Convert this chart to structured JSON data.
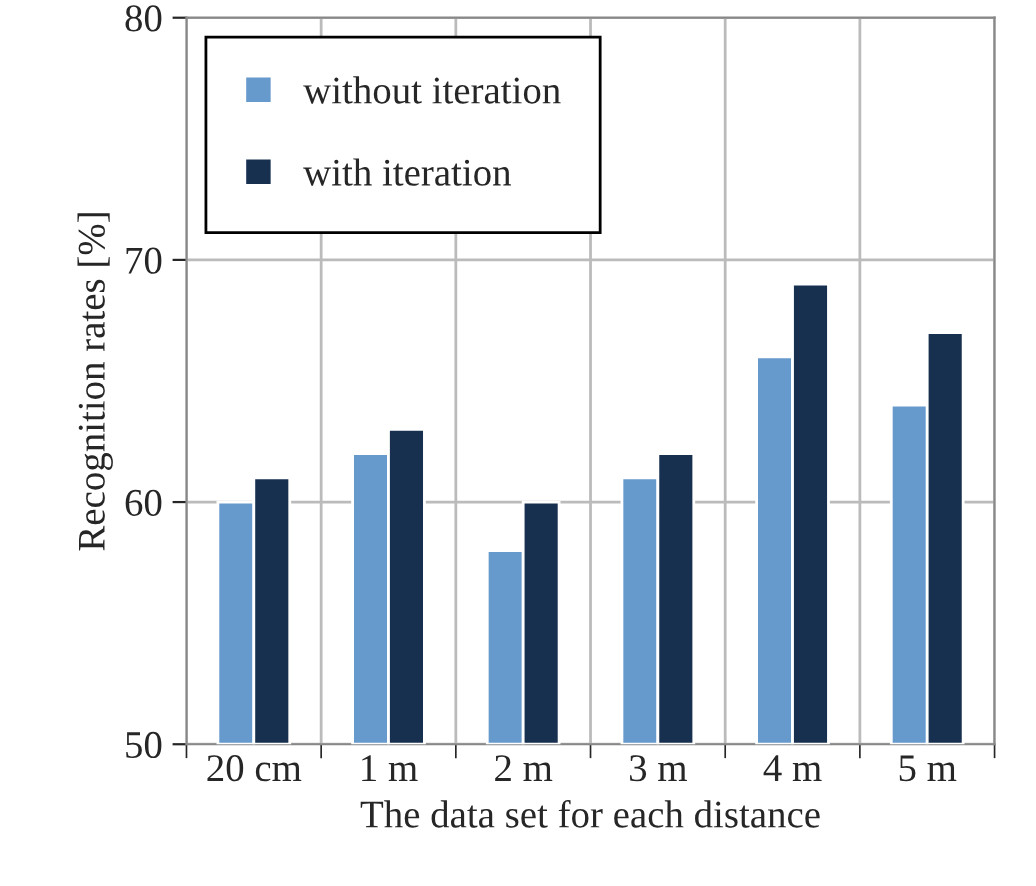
{
  "chart_data": {
    "type": "bar",
    "xlabel": "The data set for each distance",
    "ylabel": "Recognition rates [%]",
    "categories": [
      "20 cm",
      "1 m",
      "2 m",
      "3 m",
      "4 m",
      "5 m"
    ],
    "series": [
      {
        "name": "without iteration",
        "color": "#6699cc",
        "values": [
          60,
          62,
          58,
          61,
          66,
          64
        ]
      },
      {
        "name": "with iteration",
        "color": "#17304f",
        "values": [
          61,
          63,
          60,
          62,
          69,
          67
        ]
      }
    ],
    "ylim": [
      50,
      80
    ],
    "yticks": [
      50,
      60,
      70,
      80
    ],
    "grid": true,
    "legend": "top left"
  }
}
